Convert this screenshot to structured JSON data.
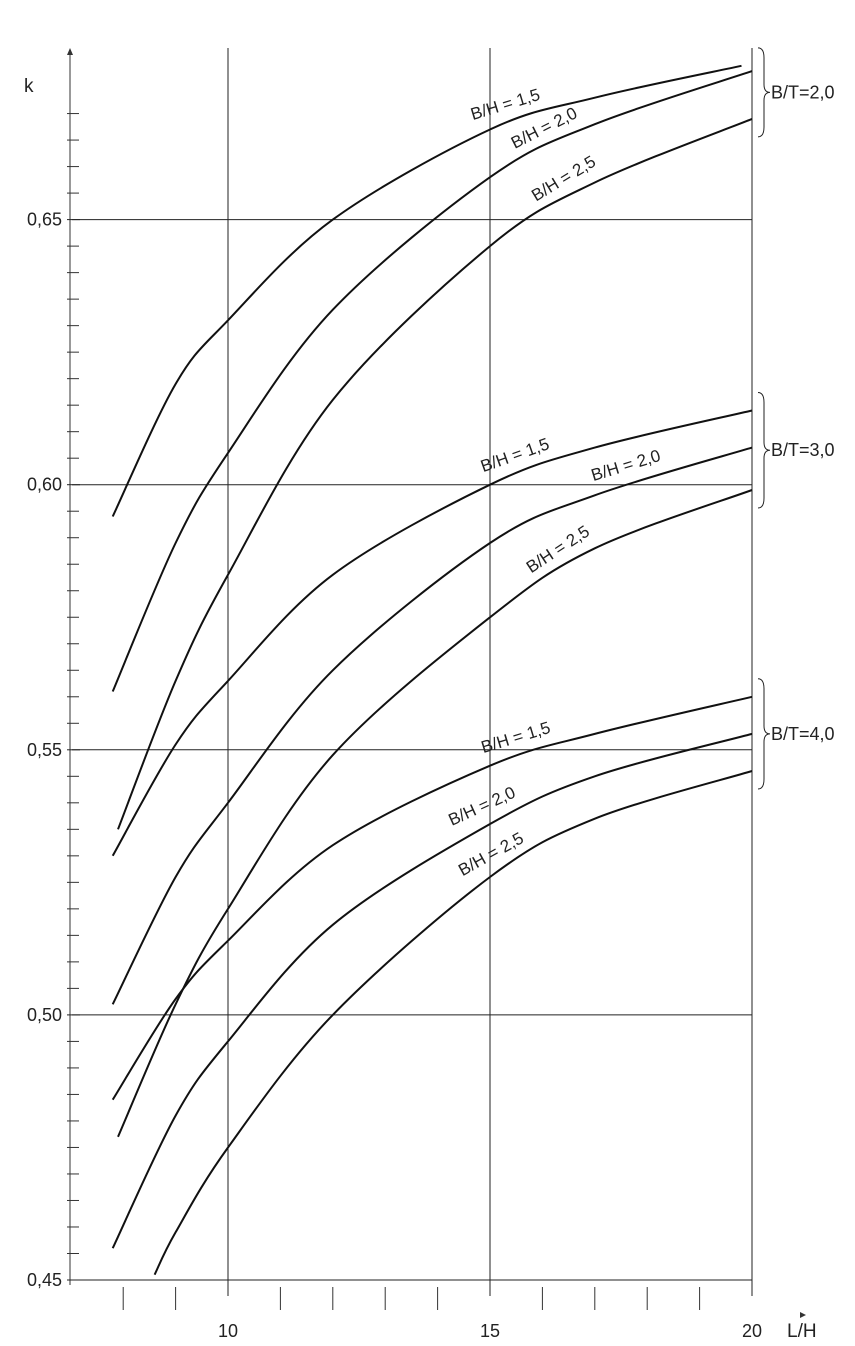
{
  "chart_data": {
    "type": "line",
    "title": "",
    "xlabel": "L/H",
    "ylabel": "k",
    "xlim": [
      7,
      20
    ],
    "ylim": [
      0.45,
      0.675
    ],
    "grid": true,
    "x_major_ticks": [
      {
        "value": 10,
        "label": "10"
      },
      {
        "value": 15,
        "label": "15"
      },
      {
        "value": 20,
        "label": "20"
      }
    ],
    "x_minor_ticks": [
      8,
      9,
      11,
      12,
      13,
      14,
      16,
      17,
      18,
      19
    ],
    "y_major_ticks": [
      {
        "value": 0.45,
        "label": "0,45"
      },
      {
        "value": 0.5,
        "label": "0,50"
      },
      {
        "value": 0.55,
        "label": "0,55"
      },
      {
        "value": 0.6,
        "label": "0,60"
      },
      {
        "value": 0.65,
        "label": "0,65"
      }
    ],
    "y_minor_ticks": [
      0.455,
      0.46,
      0.465,
      0.47,
      0.475,
      0.48,
      0.485,
      0.49,
      0.495,
      0.505,
      0.51,
      0.515,
      0.52,
      0.525,
      0.53,
      0.535,
      0.54,
      0.545,
      0.555,
      0.56,
      0.565,
      0.57,
      0.575,
      0.58,
      0.585,
      0.59,
      0.595,
      0.605,
      0.61,
      0.615,
      0.62,
      0.625,
      0.63,
      0.635,
      0.64,
      0.645,
      0.655,
      0.66,
      0.665,
      0.67
    ],
    "groups": [
      {
        "label": "B/T=2,0",
        "series": [
          {
            "name": "B/H = 1,5",
            "x": [
              7.8,
              9,
              10,
              12,
              15,
              17,
              19.8
            ],
            "y": [
              0.594,
              0.619,
              0.631,
              0.65,
              0.667,
              0.673,
              0.679
            ]
          },
          {
            "name": "B/H = 2,0",
            "x": [
              7.8,
              9,
              10,
              12,
              15,
              17,
              20
            ],
            "y": [
              0.561,
              0.589,
              0.606,
              0.633,
              0.658,
              0.668,
              0.678
            ]
          },
          {
            "name": "B/H = 2,5",
            "x": [
              7.9,
              9,
              10,
              12,
              15,
              17,
              20
            ],
            "y": [
              0.535,
              0.563,
              0.583,
              0.616,
              0.645,
              0.657,
              0.669
            ]
          }
        ]
      },
      {
        "label": "B/T=3,0",
        "series": [
          {
            "name": "B/H = 1,5",
            "x": [
              7.8,
              9,
              10,
              12,
              15,
              17,
              20
            ],
            "y": [
              0.53,
              0.551,
              0.563,
              0.583,
              0.6,
              0.607,
              0.614
            ]
          },
          {
            "name": "B/H = 2,0",
            "x": [
              7.8,
              9,
              10,
              12,
              15,
              17,
              20
            ],
            "y": [
              0.502,
              0.526,
              0.54,
              0.565,
              0.589,
              0.598,
              0.607
            ]
          },
          {
            "name": "B/H = 2,5",
            "x": [
              7.9,
              9,
              10,
              12,
              15,
              17,
              20
            ],
            "y": [
              0.477,
              0.502,
              0.52,
              0.549,
              0.575,
              0.588,
              0.599
            ]
          }
        ]
      },
      {
        "label": "B/T=4,0",
        "series": [
          {
            "name": "B/H = 1,5",
            "x": [
              7.8,
              9,
              10,
              12,
              15,
              17,
              20
            ],
            "y": [
              0.484,
              0.503,
              0.514,
              0.532,
              0.547,
              0.553,
              0.56
            ]
          },
          {
            "name": "B/H = 2,0",
            "x": [
              7.8,
              9,
              10,
              12,
              15,
              17,
              20
            ],
            "y": [
              0.456,
              0.481,
              0.495,
              0.517,
              0.536,
              0.545,
              0.553
            ]
          },
          {
            "name": "B/H = 2,5",
            "x": [
              8.6,
              9,
              10,
              12,
              15,
              17,
              20
            ],
            "y": [
              0.451,
              0.459,
              0.475,
              0.5,
              0.526,
              0.537,
              0.546
            ]
          }
        ]
      }
    ]
  }
}
